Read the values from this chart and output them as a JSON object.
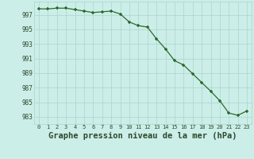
{
  "x": [
    0,
    1,
    2,
    3,
    4,
    5,
    6,
    7,
    8,
    9,
    10,
    11,
    12,
    13,
    14,
    15,
    16,
    17,
    18,
    19,
    20,
    21,
    22,
    23
  ],
  "y": [
    997.8,
    997.8,
    997.9,
    997.9,
    997.7,
    997.5,
    997.3,
    997.4,
    997.5,
    997.1,
    996.0,
    995.5,
    995.3,
    993.7,
    992.3,
    990.7,
    990.1,
    988.9,
    987.7,
    986.5,
    985.2,
    983.5,
    983.2,
    983.8
  ],
  "line_color": "#2d6a2d",
  "marker": "+",
  "marker_color": "#2d6a2d",
  "bg_color": "#cceee8",
  "grid_color": "#aad4cc",
  "xlabel": "Graphe pression niveau de la mer (hPa)",
  "xlabel_fontsize": 7.5,
  "xtick_labels": [
    "0",
    "1",
    "2",
    "3",
    "4",
    "5",
    "6",
    "7",
    "8",
    "9",
    "10",
    "11",
    "12",
    "13",
    "14",
    "15",
    "16",
    "17",
    "18",
    "19",
    "20",
    "21",
    "22",
    "23"
  ],
  "ytick_values": [
    983,
    985,
    987,
    989,
    991,
    993,
    995,
    997
  ],
  "ylim": [
    982.0,
    998.8
  ],
  "xlim": [
    -0.5,
    23.5
  ],
  "tick_color": "#2d4a2d"
}
